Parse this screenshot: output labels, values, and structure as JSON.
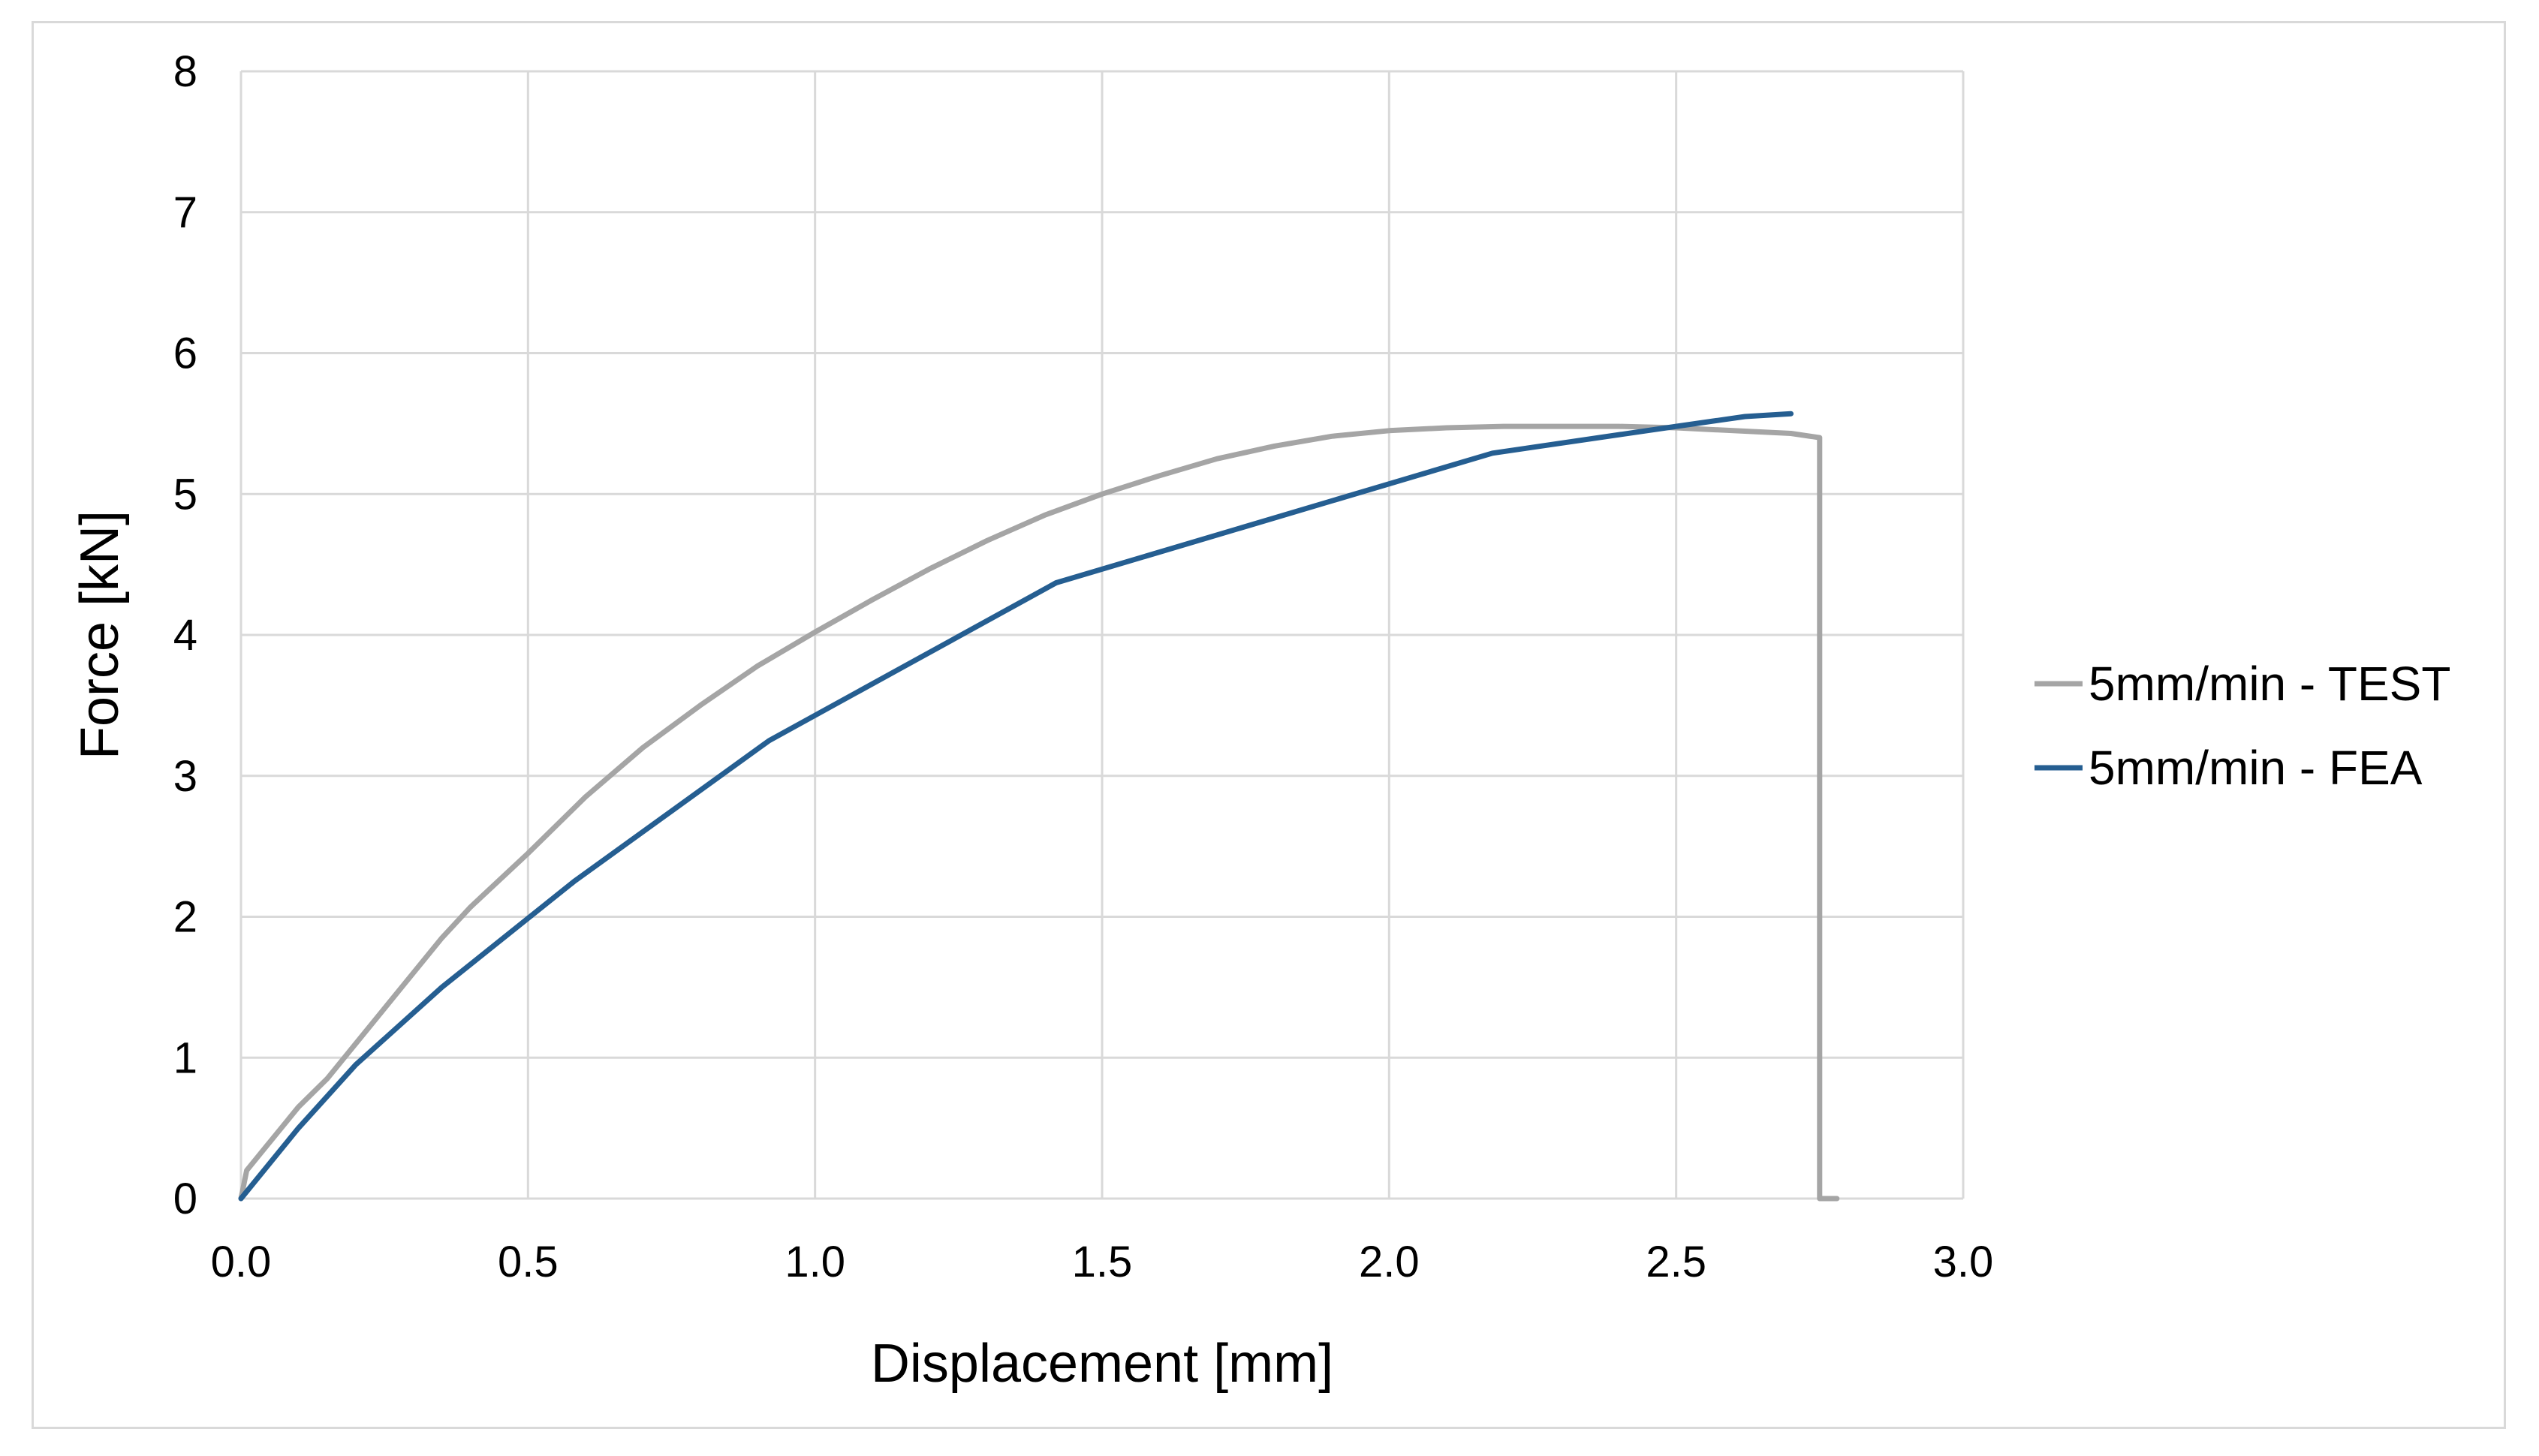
{
  "chart_data": {
    "type": "line",
    "title": "",
    "xlabel": "Displacement [mm]",
    "ylabel": "Force [kN]",
    "xlim": [
      0,
      3.0
    ],
    "ylim": [
      0,
      8
    ],
    "x_ticks": [
      "0.0",
      "0.5",
      "1.0",
      "1.5",
      "2.0",
      "2.5",
      "3.0"
    ],
    "y_ticks": [
      "0",
      "1",
      "2",
      "3",
      "4",
      "5",
      "6",
      "7",
      "8"
    ],
    "grid": "on",
    "legend_position": "right",
    "colors": {
      "grid": "#d9d9d9",
      "axis": "#d9d9d9"
    },
    "series": [
      {
        "name": "5mm/min - TEST",
        "color": "#a5a5a5",
        "x": [
          0.0,
          0.01,
          0.03,
          0.05,
          0.1,
          0.15,
          0.2,
          0.25,
          0.3,
          0.35,
          0.4,
          0.5,
          0.6,
          0.7,
          0.8,
          0.9,
          1.0,
          1.1,
          1.2,
          1.3,
          1.4,
          1.5,
          1.6,
          1.7,
          1.8,
          1.9,
          2.0,
          2.1,
          2.2,
          2.3,
          2.4,
          2.5,
          2.6,
          2.7,
          2.75,
          2.75,
          2.78
        ],
        "y": [
          0.0,
          0.2,
          0.3,
          0.4,
          0.65,
          0.85,
          1.1,
          1.35,
          1.6,
          1.85,
          2.07,
          2.45,
          2.85,
          3.2,
          3.5,
          3.78,
          4.02,
          4.25,
          4.47,
          4.67,
          4.85,
          5.0,
          5.13,
          5.25,
          5.34,
          5.41,
          5.45,
          5.47,
          5.48,
          5.48,
          5.48,
          5.47,
          5.45,
          5.43,
          5.4,
          0.0,
          0.0
        ]
      },
      {
        "name": "5mm/min - FEA",
        "color": "#255e91",
        "x": [
          0.0,
          0.1,
          0.2,
          0.35,
          0.58,
          0.92,
          1.42,
          2.18,
          2.5,
          2.62,
          2.7
        ],
        "y": [
          0.0,
          0.5,
          0.95,
          1.5,
          2.25,
          3.25,
          4.37,
          5.29,
          5.48,
          5.55,
          5.57
        ]
      }
    ]
  }
}
